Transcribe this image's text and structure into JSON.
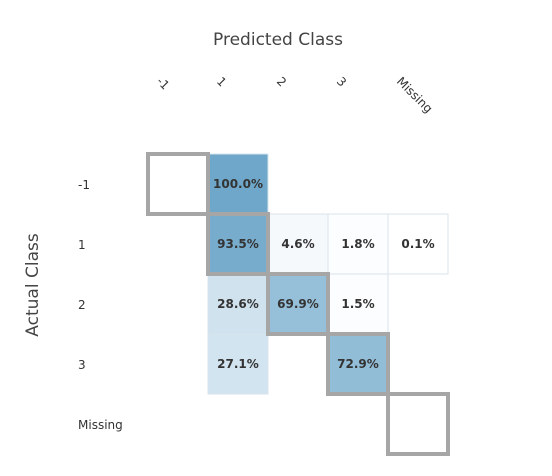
{
  "chart_data": {
    "type": "heatmap",
    "title": "Predicted Class",
    "xlabel": "Predicted Class",
    "ylabel": "Actual Class",
    "x_categories": [
      "-1",
      "1",
      "2",
      "3",
      "Missing"
    ],
    "y_categories": [
      "-1",
      "1",
      "2",
      "3",
      "Missing"
    ],
    "cells": [
      {
        "row": "-1",
        "col": "1",
        "value": 100.0,
        "label": "100.0%"
      },
      {
        "row": "1",
        "col": "1",
        "value": 93.5,
        "label": "93.5%"
      },
      {
        "row": "1",
        "col": "2",
        "value": 4.6,
        "label": "4.6%"
      },
      {
        "row": "1",
        "col": "3",
        "value": 1.8,
        "label": "1.8%"
      },
      {
        "row": "1",
        "col": "Missing",
        "value": 0.1,
        "label": "0.1%"
      },
      {
        "row": "2",
        "col": "1",
        "value": 28.6,
        "label": "28.6%"
      },
      {
        "row": "2",
        "col": "2",
        "value": 69.9,
        "label": "69.9%"
      },
      {
        "row": "2",
        "col": "3",
        "value": 1.5,
        "label": "1.5%"
      },
      {
        "row": "3",
        "col": "1",
        "value": 27.1,
        "label": "27.1%"
      },
      {
        "row": "3",
        "col": "3",
        "value": 72.9,
        "label": "72.9%"
      }
    ],
    "value_range": [
      0,
      100
    ],
    "diagonal_highlight": true,
    "colors": {
      "low": "#ffffff",
      "high": "#6ea7ca",
      "cell_border": "#d8e3ec",
      "diagonal_border": "#a6a6a6",
      "text": "#333333",
      "axis_title": "#444444",
      "tick_text": "#333333"
    }
  }
}
